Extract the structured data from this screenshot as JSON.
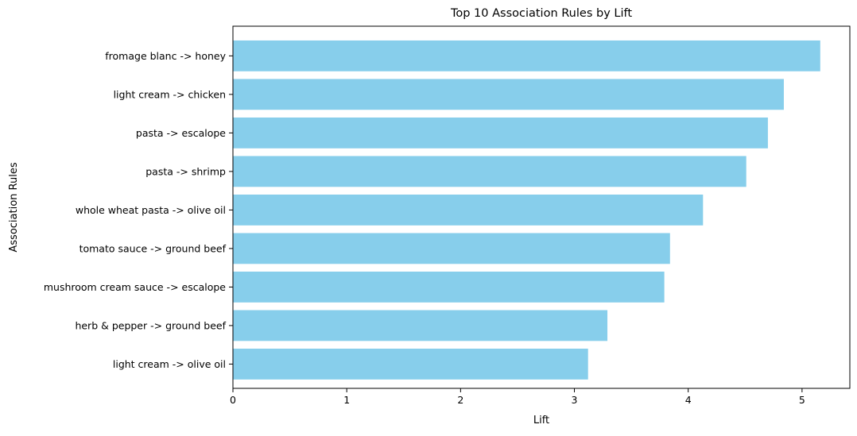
{
  "chart_data": {
    "type": "bar",
    "orientation": "horizontal",
    "title": "Top 10 Association Rules by Lift",
    "xlabel": "Lift",
    "ylabel": "Association Rules",
    "categories": [
      "fromage blanc -> honey",
      "light cream -> chicken",
      "pasta -> escalope",
      "pasta -> shrimp",
      "whole wheat pasta -> olive oil",
      "tomato sauce -> ground beef",
      "mushroom cream sauce -> escalope",
      "herb & pepper -> ground beef",
      "light cream -> olive oil"
    ],
    "values": [
      5.16,
      4.84,
      4.7,
      4.51,
      4.13,
      3.84,
      3.79,
      3.29,
      3.12
    ],
    "xlim": [
      0,
      5.42
    ],
    "xticks": [
      0,
      1,
      2,
      3,
      4,
      5
    ],
    "bar_color": "#87ceeb",
    "grid": false,
    "legend": "none"
  }
}
